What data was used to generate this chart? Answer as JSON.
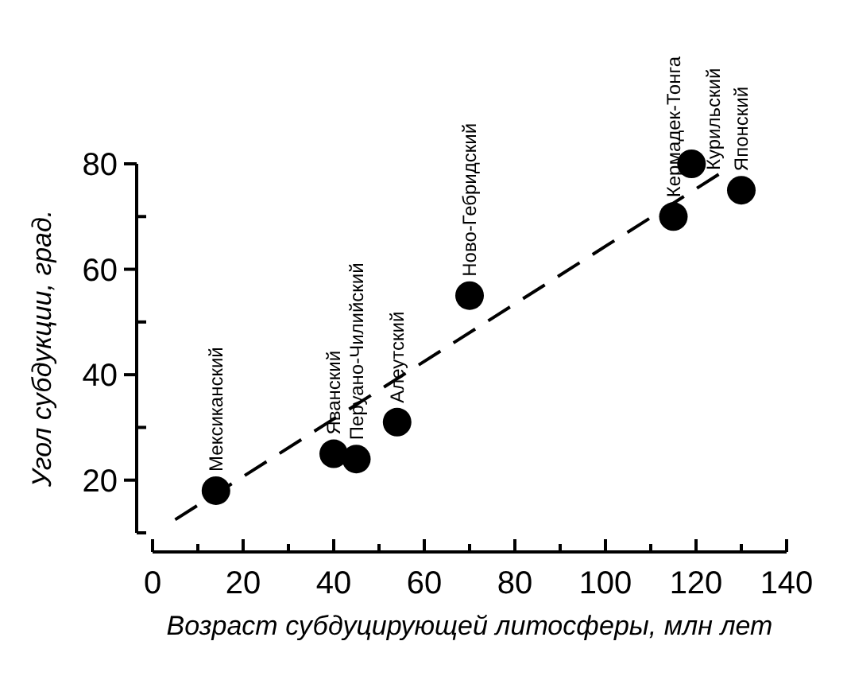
{
  "chart_data": {
    "type": "scatter",
    "xlabel": "Возраст субдуцирующей литосферы, млн лет",
    "ylabel": "Угол субдукции, град.",
    "xlim": [
      0,
      140
    ],
    "xticks": [
      0,
      {
        "value": 10,
        "label": null
      },
      20,
      {
        "value": 30,
        "label": null
      },
      40,
      {
        "value": 50,
        "label": null
      },
      60,
      {
        "value": 70,
        "label": null
      },
      80,
      {
        "value": 90,
        "label": null
      },
      100,
      {
        "value": 110,
        "label": null
      },
      120,
      {
        "value": 130,
        "label": null
      },
      140
    ],
    "ylim": [
      10,
      80
    ],
    "yticks": [
      {
        "value": 10,
        "label": null
      },
      20,
      {
        "value": 30,
        "label": null
      },
      40,
      {
        "value": 50,
        "label": null
      },
      60,
      {
        "value": 70,
        "label": null
      },
      80
    ],
    "marker": "circle",
    "series": [
      {
        "color": "#000000",
        "x": [
          14,
          40,
          45,
          54,
          70,
          115,
          119,
          130
        ],
        "values": [
          18,
          25,
          24,
          31,
          55,
          70,
          80,
          75
        ]
      },
      {
        "type": "line",
        "color": "#000000",
        "line_style": "dashed",
        "marker": "none",
        "x": [
          5,
          125
        ],
        "values": [
          12.5,
          78
        ]
      }
    ],
    "annotations": [
      {
        "text": "Мексиканский",
        "x": 14,
        "y": 18
      },
      {
        "text": "Яванский",
        "x": 40,
        "y": 25
      },
      {
        "text": "Перуано-Чилийский",
        "x": 45,
        "y": 24
      },
      {
        "text": "Алеутский",
        "x": 54,
        "y": 31
      },
      {
        "text": "Ново-Гебридский",
        "x": 70,
        "y": 55
      },
      {
        "text": "Кермадек-Тонга",
        "x": 115,
        "y": 70
      },
      {
        "text": "Курильский",
        "x": 119,
        "y": 80
      },
      {
        "text": "Японский",
        "x": 130,
        "y": 75
      }
    ]
  }
}
